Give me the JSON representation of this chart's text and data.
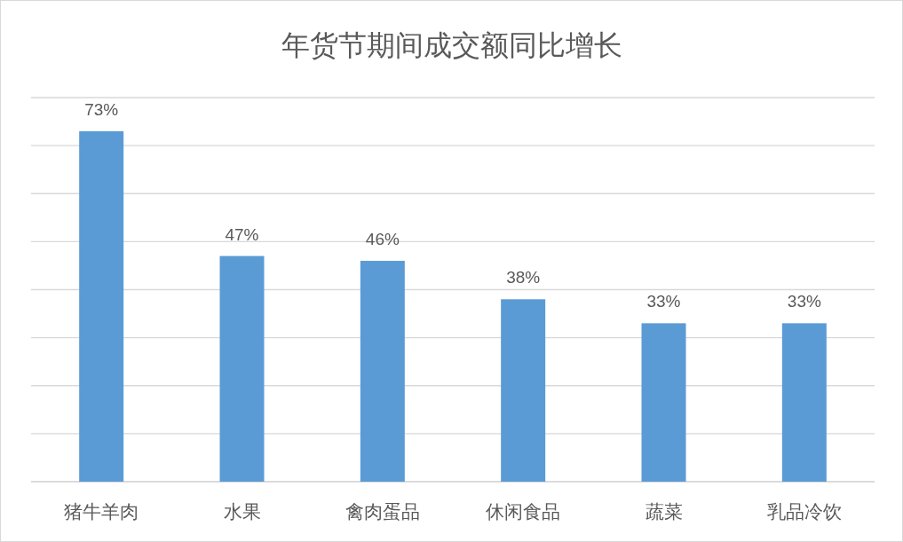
{
  "chart_data": {
    "type": "bar",
    "title": "年货节期间成交额同比增长",
    "categories": [
      "猪牛羊肉",
      "水果",
      "禽肉蛋品",
      "休闲食品",
      "蔬菜",
      "乳品冷饮"
    ],
    "values": [
      73,
      47,
      46,
      38,
      33,
      33
    ],
    "color": "#5b9bd5",
    "value_labels": [
      "73%",
      "47%",
      "46%",
      "38%",
      "33%",
      "33%"
    ],
    "ylim": [
      0,
      80
    ],
    "yticks": [
      {
        "value": 0,
        "label": null
      },
      {
        "value": 10,
        "label": null
      },
      {
        "value": 20,
        "label": null
      },
      {
        "value": 30,
        "label": null
      },
      {
        "value": 40,
        "label": null
      },
      {
        "value": 50,
        "label": null
      },
      {
        "value": 60,
        "label": null
      },
      {
        "value": 70,
        "label": null
      },
      {
        "value": 80,
        "label": null
      }
    ],
    "grid": "y",
    "tick_labels": "x"
  }
}
